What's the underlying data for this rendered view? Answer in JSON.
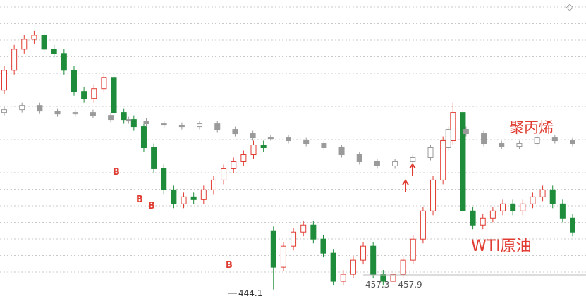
{
  "chart_data": {
    "type": "candlestick",
    "ylim": [
      440,
      547
    ],
    "grid": true,
    "annotations": {
      "polypropylene": "聚丙烯",
      "wti": "WTI原油",
      "low": "444.1",
      "range": "457.3 - 457.9",
      "buy": "B",
      "icon": "◇"
    },
    "series": [
      {
        "name": "WTI原油",
        "up_color": "#e03c31",
        "down_color": "#1e8c3a",
        "ohlc": [
          [
            515,
            523.5,
            513.5,
            522
          ],
          [
            522,
            531,
            520.5,
            529.5
          ],
          [
            529.5,
            534.5,
            528,
            533
          ],
          [
            533,
            536,
            531.5,
            534.5
          ],
          [
            534.5,
            536,
            528,
            529.5
          ],
          [
            529.5,
            531,
            526.5,
            528
          ],
          [
            528,
            529.5,
            520.5,
            522
          ],
          [
            522,
            523.5,
            513,
            514.5
          ],
          [
            514.5,
            516,
            510.5,
            512
          ],
          [
            512,
            517,
            510.5,
            515.5
          ],
          [
            515.5,
            521,
            514,
            519.5
          ],
          [
            519.5,
            521,
            505.5,
            507
          ],
          [
            507,
            508.5,
            503,
            504.5
          ],
          [
            504.5,
            506,
            500.5,
            502
          ],
          [
            502,
            503.5,
            493,
            494.5
          ],
          [
            494.5,
            496,
            485.5,
            487
          ],
          [
            487,
            488.5,
            478,
            479.5
          ],
          [
            479.5,
            481,
            473,
            474.5
          ],
          [
            474.5,
            478.5,
            473,
            477
          ],
          [
            477,
            478.5,
            474.5,
            476
          ],
          [
            476,
            481,
            474.5,
            479.5
          ],
          [
            479.5,
            484.5,
            478,
            483
          ],
          [
            483,
            488.5,
            481.5,
            487
          ],
          [
            487,
            491,
            485.5,
            489.5
          ],
          [
            489.5,
            493.5,
            488,
            492
          ],
          [
            492,
            497,
            490.5,
            495.5
          ],
          [
            495.5,
            497,
            493,
            494.5
          ],
          [
            465,
            466.5,
            444.1,
            452
          ],
          [
            452,
            461,
            450.5,
            459.5
          ],
          [
            459.5,
            466,
            458,
            464.5
          ],
          [
            464.5,
            468.5,
            463,
            467
          ],
          [
            467,
            468.5,
            460.5,
            462
          ],
          [
            462,
            463.5,
            455.5,
            457
          ],
          [
            457,
            458.5,
            445.5,
            447
          ],
          [
            447,
            451,
            445.5,
            449.5
          ],
          [
            449.5,
            456,
            448,
            454.5
          ],
          [
            454.5,
            461,
            453,
            459.5
          ],
          [
            459.5,
            461,
            448,
            449.5
          ],
          [
            449.5,
            451,
            445.5,
            447
          ],
          [
            447,
            451,
            445.5,
            449.5
          ],
          [
            449.5,
            456,
            448,
            454.5
          ],
          [
            454.5,
            463.5,
            453,
            462
          ],
          [
            462,
            473.5,
            460.5,
            472
          ],
          [
            472,
            484.5,
            470.5,
            483
          ],
          [
            483,
            498.5,
            481.5,
            497
          ],
          [
            497,
            510.5,
            495.5,
            507
          ],
          [
            507,
            508.5,
            470.5,
            472
          ],
          [
            472,
            473.5,
            465.5,
            467
          ],
          [
            467,
            471,
            465.5,
            469.5
          ],
          [
            469.5,
            473.5,
            468,
            472
          ],
          [
            472,
            476,
            470.5,
            474.5
          ],
          [
            474.5,
            476,
            470.5,
            472
          ],
          [
            472,
            476,
            470.5,
            474.5
          ],
          [
            474.5,
            478.5,
            473,
            477
          ],
          [
            477,
            481,
            475.5,
            479.5
          ],
          [
            479.5,
            481,
            473,
            474.5
          ],
          [
            474.5,
            476,
            468,
            469.5
          ],
          [
            469.5,
            471,
            463,
            464.5
          ]
        ]
      },
      {
        "name": "聚丙烯",
        "up_color": "#9a9a9a",
        "down_color": "#9a9a9a",
        "ohlc": [
          [
            507,
            509,
            506,
            508
          ],
          [
            508,
            510.5,
            507,
            509.5
          ],
          [
            509.5,
            510.5,
            506.5,
            507.5
          ],
          [
            507.5,
            508.5,
            505.5,
            506.5
          ],
          [
            506.5,
            508,
            505.5,
            507
          ],
          [
            507,
            508,
            505,
            506
          ],
          [
            506,
            507,
            503.5,
            504.5
          ],
          [
            504.5,
            505.5,
            503,
            504
          ],
          [
            504,
            505,
            502,
            503
          ],
          [
            503,
            504,
            501.5,
            502.5
          ],
          [
            502.5,
            503.5,
            501,
            502
          ],
          [
            502,
            504,
            501,
            503
          ],
          [
            503,
            504,
            500,
            501
          ],
          [
            501,
            502,
            498.5,
            499.5
          ],
          [
            499.5,
            500.5,
            497,
            498
          ],
          [
            498,
            499,
            497,
            498
          ],
          [
            498,
            499,
            496,
            497
          ],
          [
            497,
            498,
            495,
            496
          ],
          [
            496,
            497,
            493.5,
            494.5
          ],
          [
            494.5,
            495.5,
            491,
            492
          ],
          [
            492,
            493,
            488.5,
            489.5
          ],
          [
            489.5,
            490.5,
            487,
            488
          ],
          [
            488,
            490.5,
            487,
            489.5
          ],
          [
            489.5,
            492,
            488.5,
            491
          ],
          [
            491,
            495.5,
            490,
            494.5
          ],
          [
            494.5,
            502,
            493.5,
            501
          ],
          [
            501,
            502,
            498.5,
            499.5
          ],
          [
            499.5,
            500.5,
            495,
            496
          ],
          [
            496,
            497,
            494,
            495
          ],
          [
            495,
            497,
            494,
            496
          ],
          [
            496,
            499,
            495,
            498
          ],
          [
            498,
            499,
            496,
            497
          ],
          [
            497,
            498,
            495,
            496
          ]
        ]
      }
    ]
  }
}
